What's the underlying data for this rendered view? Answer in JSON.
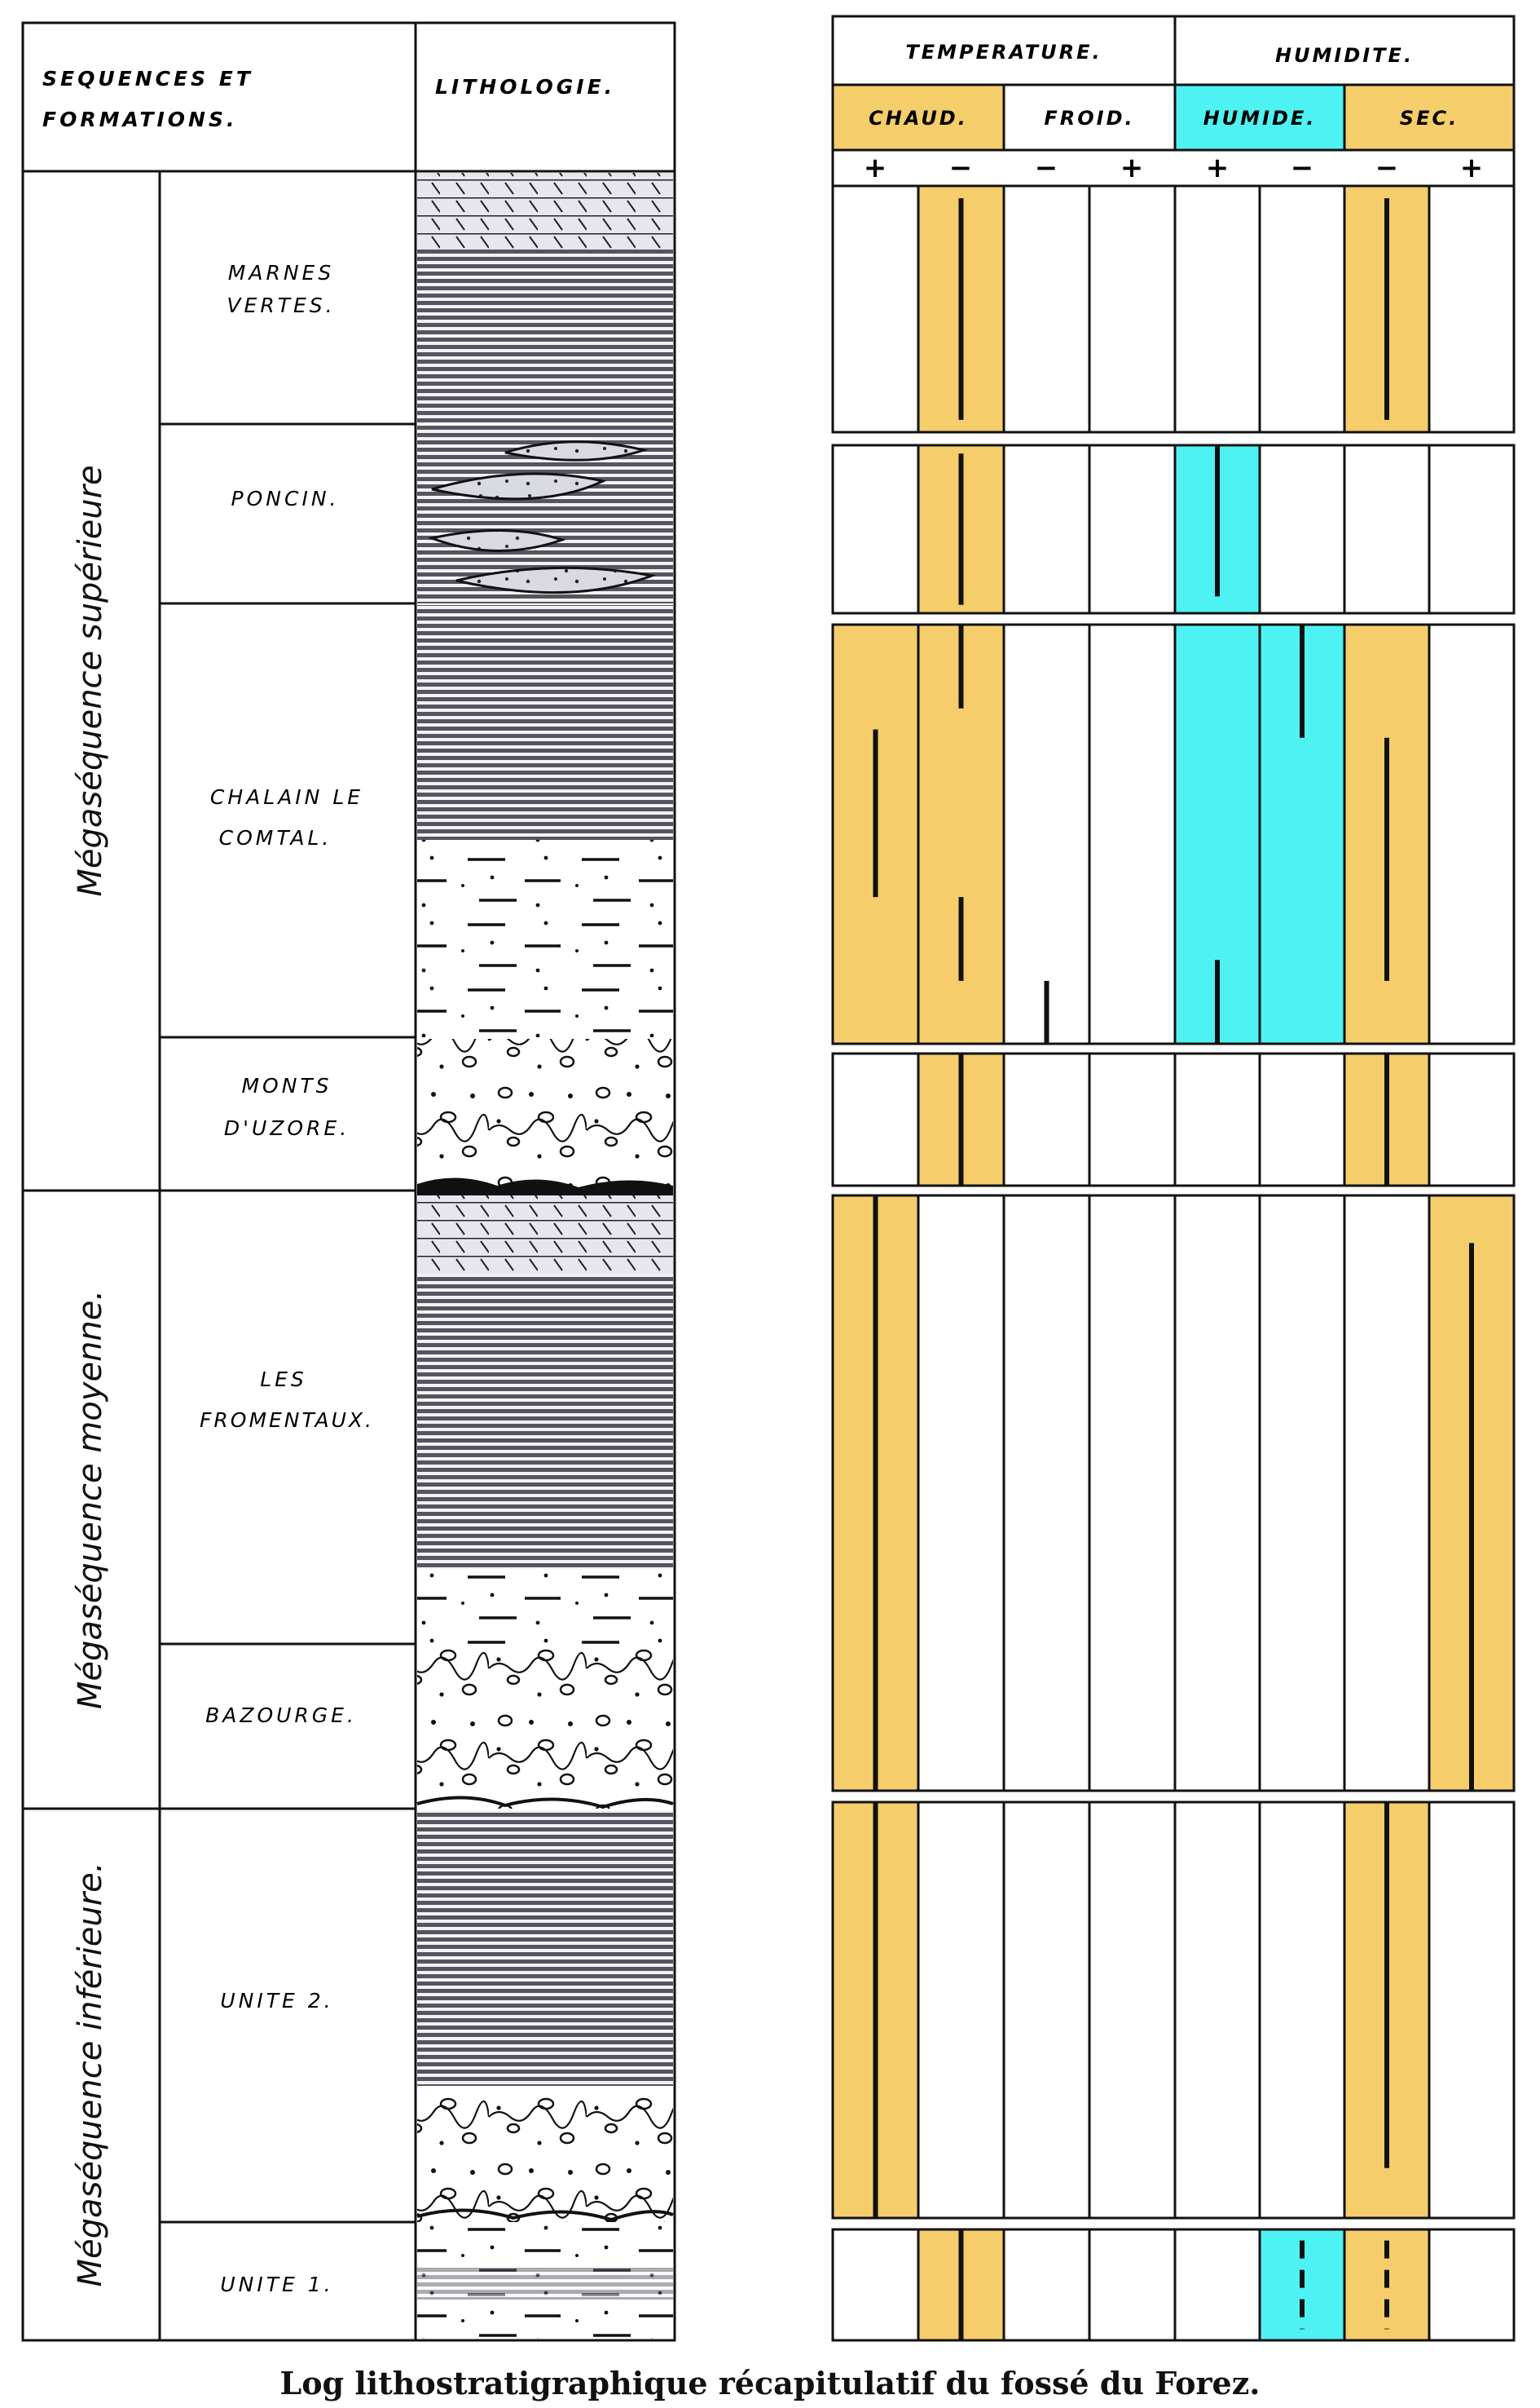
{
  "left_table": {
    "headers": {
      "sequences": [
        "SEQUENCES ET",
        "FORMATIONS."
      ],
      "lithology": "LITHOLOGIE."
    },
    "megasequences": [
      {
        "label": "Mégaséquence supérieure"
      },
      {
        "label": "Mégaséquence moyenne."
      },
      {
        "label": "Mégaséquence inférieure."
      }
    ],
    "formations": [
      {
        "lines": [
          "MARNES",
          "VERTES."
        ]
      },
      {
        "lines": [
          "PONCIN."
        ]
      },
      {
        "lines": [
          "CHALAIN LE",
          "COMTAL."
        ]
      },
      {
        "lines": [
          "MONTS",
          "D'UZORE."
        ]
      },
      {
        "lines": [
          "LES",
          "FROMENTAUX."
        ]
      },
      {
        "lines": [
          "BAZOURGE."
        ]
      },
      {
        "lines": [
          "UNITE 2."
        ]
      },
      {
        "lines": [
          "UNITE 1."
        ]
      }
    ],
    "lithology_types": {
      "marl": "horizontal laminated marls",
      "limestone": "limestone beds",
      "lens": "sandy lenses",
      "sand": "sands with silt lenses",
      "conglomerate": "conglomerate"
    }
  },
  "right_table": {
    "headers": {
      "temperature": "TEMPERATURE.",
      "humidity": "HUMIDITE.",
      "sub": [
        "CHAUD.",
        "FROID.",
        "HUMIDE.",
        "SEC."
      ],
      "signs": [
        "+",
        "−",
        "−",
        "+",
        "+",
        "−",
        "−",
        "+"
      ]
    },
    "colors": {
      "warm": "#f5cd6b",
      "humid": "#4ff2f2",
      "line": "#111111"
    },
    "rows": [
      {
        "formation": "MARNES VERTES.",
        "fills": [
          1,
          6
        ],
        "ticks": [
          {
            "col": 1,
            "from": 0.05,
            "to": 0.95,
            "style": "solid"
          },
          {
            "col": 6,
            "from": 0.05,
            "to": 0.95,
            "style": "solid"
          }
        ]
      },
      {
        "formation": "PONCIN.",
        "fills": [
          1,
          4
        ],
        "ticks": [
          {
            "col": 1,
            "from": 0.05,
            "to": 0.95,
            "style": "solid"
          },
          {
            "col": 4,
            "from": 0.0,
            "to": 0.9,
            "style": "solid"
          }
        ]
      },
      {
        "formation": "CHALAIN LE COMTAL.",
        "fills": [
          0,
          1,
          4,
          5,
          6
        ],
        "ticks": [
          {
            "col": 1,
            "from": 0.0,
            "to": 0.2,
            "style": "solid"
          },
          {
            "col": 0,
            "from": 0.25,
            "to": 0.65,
            "style": "solid"
          },
          {
            "col": 1,
            "from": 0.65,
            "to": 0.85,
            "style": "solid"
          },
          {
            "col": 2,
            "from": 0.85,
            "to": 1.0,
            "style": "solid"
          },
          {
            "col": 4,
            "from": 0.8,
            "to": 1.0,
            "style": "solid"
          },
          {
            "col": 5,
            "from": 0.0,
            "to": 0.27,
            "style": "solid"
          },
          {
            "col": 6,
            "from": 0.27,
            "to": 0.85,
            "style": "solid"
          }
        ]
      },
      {
        "formation": "MONTS D'UZORE.",
        "fills": [
          1,
          6
        ],
        "ticks": [
          {
            "col": 1,
            "from": 0.0,
            "to": 1.0,
            "style": "solid"
          },
          {
            "col": 6,
            "from": 0.0,
            "to": 1.0,
            "style": "solid"
          }
        ]
      },
      {
        "formation": "LES FROMENTAUX. / BAZOURGE.",
        "fills": [
          0,
          7
        ],
        "ticks": [
          {
            "col": 0,
            "from": 0.0,
            "to": 1.0,
            "style": "solid"
          },
          {
            "col": 7,
            "from": 0.08,
            "to": 1.0,
            "style": "solid"
          }
        ]
      },
      {
        "formation": "UNITE 2.",
        "fills": [
          0,
          6
        ],
        "ticks": [
          {
            "col": 0,
            "from": 0.0,
            "to": 1.0,
            "style": "solid"
          },
          {
            "col": 6,
            "from": 0.0,
            "to": 0.88,
            "style": "solid"
          }
        ]
      },
      {
        "formation": "UNITE 1.",
        "fills": [
          1,
          5,
          6
        ],
        "ticks": [
          {
            "col": 1,
            "from": 0.0,
            "to": 1.0,
            "style": "solid"
          },
          {
            "col": 5,
            "from": 0.1,
            "to": 0.9,
            "style": "dashed"
          },
          {
            "col": 6,
            "from": 0.1,
            "to": 0.9,
            "style": "dashed"
          }
        ]
      }
    ]
  },
  "caption": "Log lithostratigraphique récapitulatif du fossé du Forez."
}
